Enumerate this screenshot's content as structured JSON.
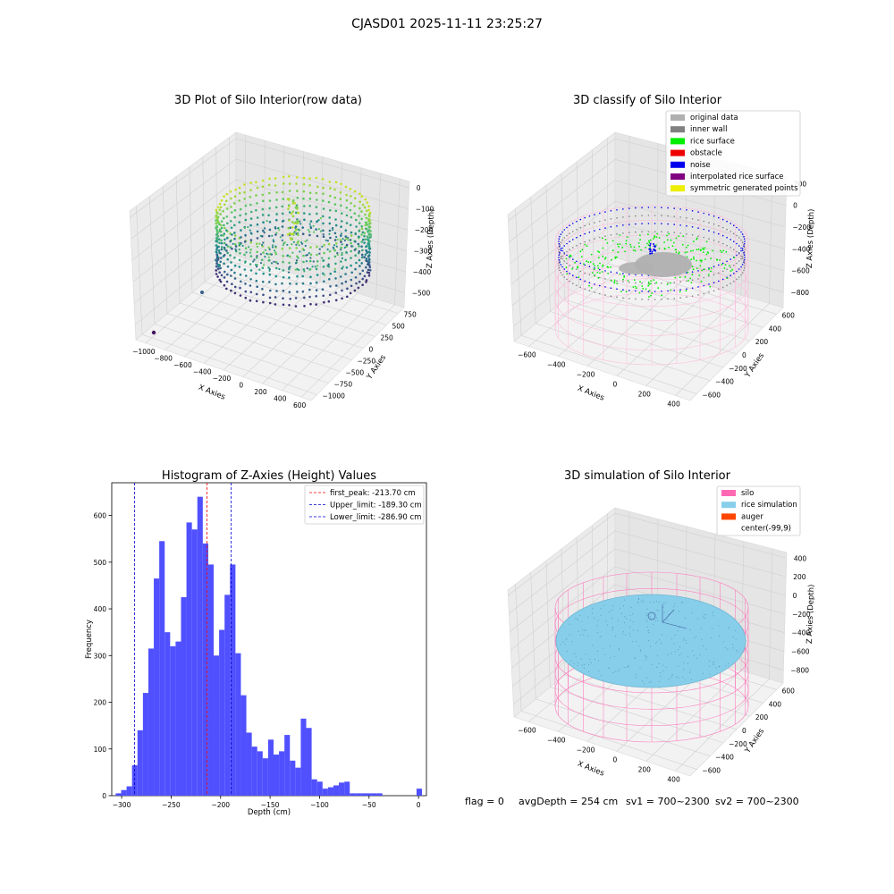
{
  "figure": {
    "suptitle": "CJASD01 2025-11-11 23:25:27",
    "footer": {
      "flag": "flag = 0",
      "avg_depth": "avgDepth = 254 cm",
      "sv1": "sv1 = 700~2300",
      "sv2": "sv2 = 700~2300"
    }
  },
  "colors": {
    "original_data": "#b0b0b0",
    "inner_wall": "#808080",
    "rice_surface": "#00ee00",
    "obstacle": "#ee0000",
    "noise": "#0000ee",
    "interpolated": "#800080",
    "symmetric": "#eeee00",
    "silo": "#ff69b4",
    "rice_sim": "#87ceeb",
    "auger": "#ff4500",
    "hist_bar": "#5050ff",
    "peak_line": "#ee0000",
    "limit_line": "#0000cc"
  },
  "panels": {
    "raw": {
      "title": "3D Plot of Silo Interior(row data)",
      "xlabel": "X Axies",
      "ylabel": "Y Axies",
      "zlabel": "Z Axies (Depth)",
      "xticks": [
        "−1000",
        "−800",
        "−600",
        "−400",
        "−200",
        "0",
        "200",
        "400",
        "600"
      ],
      "yticks": [
        "−1000",
        "−750",
        "−500",
        "−250",
        "0",
        "250",
        "500",
        "750"
      ],
      "zticks": [
        "0",
        "−100",
        "−200",
        "−300",
        "−400",
        "−500"
      ]
    },
    "classify": {
      "title": "3D classify of Silo Interior",
      "xlabel": "X Axies",
      "ylabel": "Y Axies",
      "zlabel": "Z Axies (Depth)",
      "xticks": [
        "−600",
        "−400",
        "−200",
        "0",
        "200",
        "400"
      ],
      "yticks": [
        "−600",
        "−400",
        "−200",
        "0",
        "200",
        "400",
        "600"
      ],
      "zticks": [
        "200",
        "0",
        "−200",
        "−400",
        "−600",
        "−800"
      ],
      "legend": [
        {
          "label": "original data",
          "color_key": "original_data"
        },
        {
          "label": "inner wall",
          "color_key": "inner_wall"
        },
        {
          "label": "rice surface",
          "color_key": "rice_surface"
        },
        {
          "label": "obstacle",
          "color_key": "obstacle"
        },
        {
          "label": "noise",
          "color_key": "noise"
        },
        {
          "label": "interpolated rice surface",
          "color_key": "interpolated"
        },
        {
          "label": "symmetric generated points",
          "color_key": "symmetric"
        }
      ]
    },
    "simulation": {
      "title": "3D simulation of Silo Interior",
      "xlabel": "X Axies",
      "ylabel": "Y Axies",
      "zlabel": "Z Axies (Depth)",
      "xticks": [
        "−600",
        "−400",
        "−200",
        "0",
        "200",
        "400"
      ],
      "yticks": [
        "−600",
        "−400",
        "−200",
        "0",
        "200",
        "400",
        "600"
      ],
      "zticks": [
        "400",
        "200",
        "0",
        "−200",
        "−400",
        "−600",
        "−800"
      ],
      "legend": [
        {
          "label": "silo",
          "color_key": "silo"
        },
        {
          "label": "rice simulation",
          "color_key": "rice_sim"
        },
        {
          "label": "auger",
          "color_key": "auger"
        },
        {
          "label": "center(-99,9)",
          "color_key": ""
        }
      ]
    }
  },
  "chart_data": {
    "type": "bar",
    "title": "Histogram of Z-Axies (Height) Values",
    "xlabel": "Depth (cm)",
    "ylabel": "Frequency",
    "xlim": [
      -310,
      8
    ],
    "ylim": [
      0,
      670
    ],
    "xticks": [
      -300,
      -250,
      -200,
      -150,
      -100,
      -50,
      0
    ],
    "yticks": [
      0,
      100,
      200,
      300,
      400,
      500,
      600
    ],
    "bin_width": 5.5,
    "bins": [
      {
        "x0": -306,
        "value": 5
      },
      {
        "x0": -300.5,
        "value": 12
      },
      {
        "x0": -295,
        "value": 20
      },
      {
        "x0": -289.5,
        "value": 65
      },
      {
        "x0": -284,
        "value": 140
      },
      {
        "x0": -278.5,
        "value": 220
      },
      {
        "x0": -273,
        "value": 315
      },
      {
        "x0": -267.5,
        "value": 465
      },
      {
        "x0": -262,
        "value": 545
      },
      {
        "x0": -256.5,
        "value": 350
      },
      {
        "x0": -251,
        "value": 320
      },
      {
        "x0": -245.5,
        "value": 330
      },
      {
        "x0": -240,
        "value": 425
      },
      {
        "x0": -234.5,
        "value": 585
      },
      {
        "x0": -229,
        "value": 570
      },
      {
        "x0": -223.5,
        "value": 640
      },
      {
        "x0": -218,
        "value": 540
      },
      {
        "x0": -212.5,
        "value": 495
      },
      {
        "x0": -207,
        "value": 300
      },
      {
        "x0": -201.5,
        "value": 355
      },
      {
        "x0": -196,
        "value": 430
      },
      {
        "x0": -190.5,
        "value": 495
      },
      {
        "x0": -185,
        "value": 305
      },
      {
        "x0": -179.5,
        "value": 215
      },
      {
        "x0": -174,
        "value": 135
      },
      {
        "x0": -168.5,
        "value": 105
      },
      {
        "x0": -163,
        "value": 95
      },
      {
        "x0": -157.5,
        "value": 80
      },
      {
        "x0": -152,
        "value": 120
      },
      {
        "x0": -146.5,
        "value": 88
      },
      {
        "x0": -141,
        "value": 95
      },
      {
        "x0": -135.5,
        "value": 130
      },
      {
        "x0": -130,
        "value": 75
      },
      {
        "x0": -124.5,
        "value": 60
      },
      {
        "x0": -119,
        "value": 165
      },
      {
        "x0": -113.5,
        "value": 145
      },
      {
        "x0": -108,
        "value": 35
      },
      {
        "x0": -102.5,
        "value": 30
      },
      {
        "x0": -97,
        "value": 15
      },
      {
        "x0": -91.5,
        "value": 18
      },
      {
        "x0": -86,
        "value": 22
      },
      {
        "x0": -80.5,
        "value": 28
      },
      {
        "x0": -75,
        "value": 30
      },
      {
        "x0": -69.5,
        "value": 5
      },
      {
        "x0": -64,
        "value": 5
      },
      {
        "x0": -58.5,
        "value": 5
      },
      {
        "x0": -53,
        "value": 5
      },
      {
        "x0": -47.5,
        "value": 5
      },
      {
        "x0": -42,
        "value": 5
      },
      {
        "x0": -2,
        "value": 15
      }
    ],
    "vlines": [
      {
        "value": -213.7,
        "label": "first_peak: -213.70 cm",
        "style": "peak"
      },
      {
        "value": -189.3,
        "label": "Upper_limit: -189.30 cm",
        "style": "limit"
      },
      {
        "value": -286.9,
        "label": "Lower_limit: -286.90 cm",
        "style": "limit"
      }
    ],
    "legend_position": "upper right"
  }
}
